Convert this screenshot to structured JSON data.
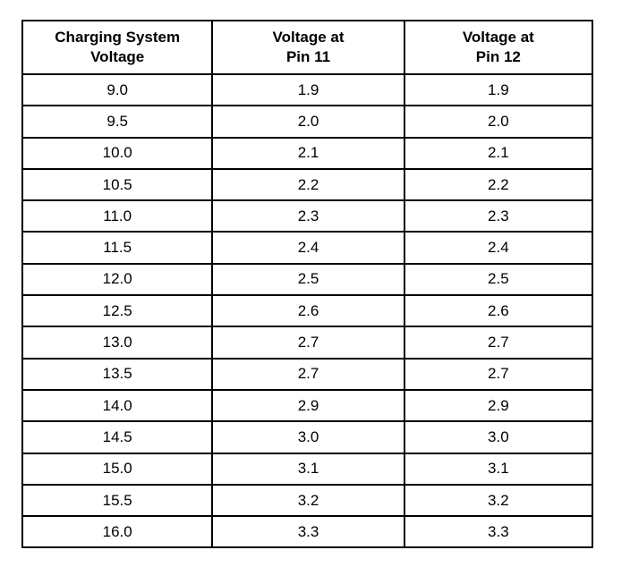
{
  "table": {
    "header": [
      [
        "Charging System",
        "Voltage"
      ],
      [
        "Voltage at",
        "Pin 11"
      ],
      [
        "Voltage at",
        "Pin 12"
      ]
    ],
    "rows": [
      [
        "9.0",
        "1.9",
        "1.9"
      ],
      [
        "9.5",
        "2.0",
        "2.0"
      ],
      [
        "10.0",
        "2.1",
        "2.1"
      ],
      [
        "10.5",
        "2.2",
        "2.2"
      ],
      [
        "11.0",
        "2.3",
        "2.3"
      ],
      [
        "11.5",
        "2.4",
        "2.4"
      ],
      [
        "12.0",
        "2.5",
        "2.5"
      ],
      [
        "12.5",
        "2.6",
        "2.6"
      ],
      [
        "13.0",
        "2.7",
        "2.7"
      ],
      [
        "13.5",
        "2.7",
        "2.7"
      ],
      [
        "14.0",
        "2.9",
        "2.9"
      ],
      [
        "14.5",
        "3.0",
        "3.0"
      ],
      [
        "15.0",
        "3.1",
        "3.1"
      ],
      [
        "15.5",
        "3.2",
        "3.2"
      ],
      [
        "16.0",
        "3.3",
        "3.3"
      ]
    ]
  }
}
